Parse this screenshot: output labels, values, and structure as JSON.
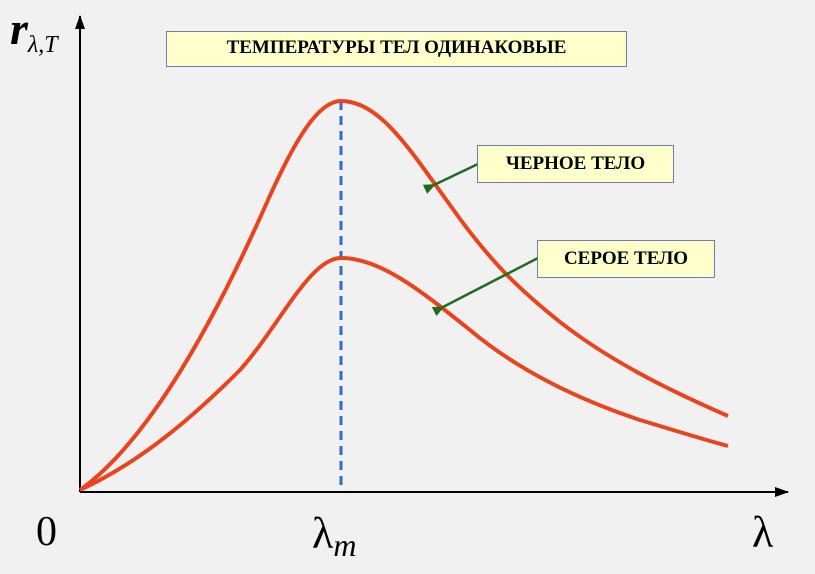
{
  "title": "ТЕМПЕРАТУРЫ ТЕЛ ОДИНАКОВЫЕ",
  "labels": {
    "black_body": "ЧЕРНОЕ ТЕЛО",
    "grey_body": "СЕРОЕ ТЕЛО"
  },
  "axes": {
    "y_symbol": "r",
    "y_subscript": "λ,T",
    "x_symbol": "λ",
    "origin": "0",
    "peak_symbol": "λ",
    "peak_subscript": "m"
  },
  "colors": {
    "curve": "#e8451e",
    "dashed_line": "#2a6fc9",
    "arrow": "#1f6b1f",
    "axis": "#000000",
    "label_fill": "#ffffcc",
    "label_border": "#6a7fb8",
    "background": "#f1f1f1"
  }
}
